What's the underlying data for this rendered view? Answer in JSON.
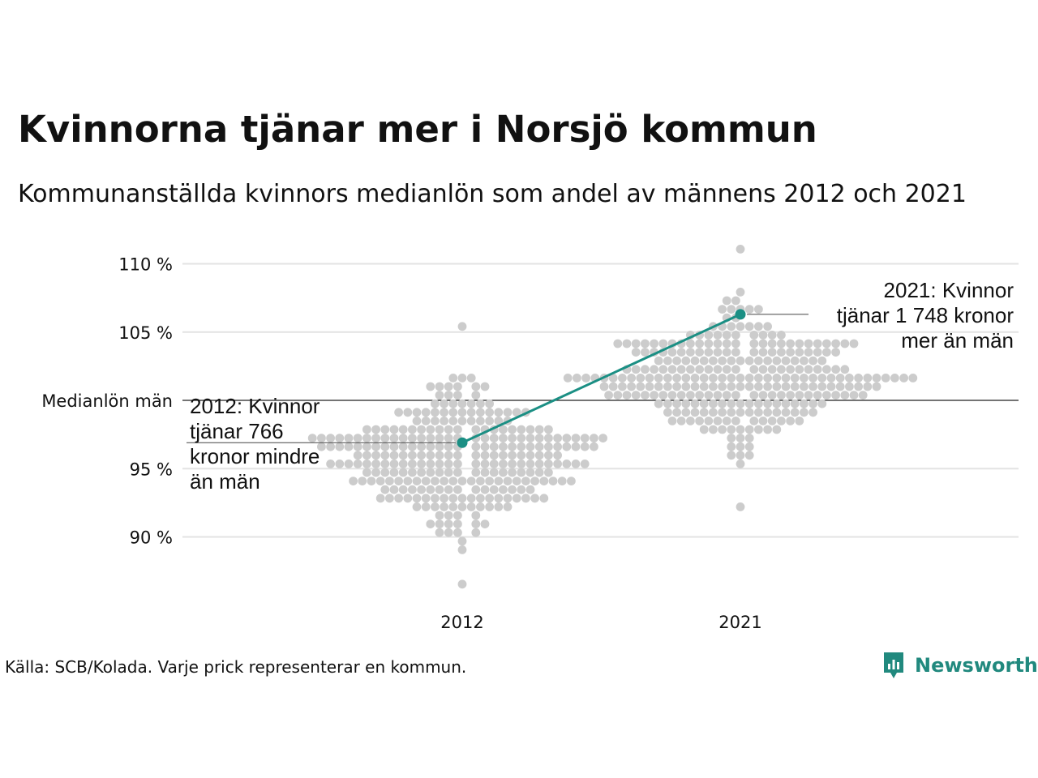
{
  "title": "Kvinnorna tjänar mer i Norsjö kommun",
  "subtitle": "Kommunanställda kvinnors medianlön som andel av männens 2012 och 2021",
  "source": "Källa: SCB/Kolada. Varje prick representerar en kommun.",
  "brand": {
    "name": "Newsworthy",
    "icon": "newsworthy-logo-icon",
    "color": "#21897e"
  },
  "chart_data": {
    "type": "scatter",
    "title": "Kvinnorna tjänar mer i Norsjö kommun",
    "subtitle": "Kommunanställda kvinnors medianlön som andel av männens 2012 och 2021",
    "categories": [
      "2012",
      "2021"
    ],
    "x": [
      "2012",
      "2021"
    ],
    "ylim": [
      86.5,
      111
    ],
    "yticks": [
      90,
      95,
      105,
      110
    ],
    "ytick_labels": [
      "90 %",
      "95 %",
      "105 %",
      "110 %"
    ],
    "reference_line": {
      "value": 100,
      "label": "Medianlön män"
    },
    "grid": true,
    "colors": {
      "dots": "#cccccc",
      "highlight": "#1b8f84",
      "grid": "#e3e3e3",
      "reference": "#222222"
    },
    "series": [
      {
        "name": "Norsjö",
        "x": [
          "2012",
          "2021"
        ],
        "values": [
          96.9,
          106.3
        ]
      }
    ],
    "distribution_summary": [
      {
        "x": "2012",
        "min": 86.5,
        "max": 105.1,
        "center": 96.0
      },
      {
        "x": "2021",
        "min": 92.5,
        "max": 111.3,
        "center": 101.5
      }
    ],
    "annotations": [
      {
        "x": "2012",
        "y": 96.9,
        "lines": [
          "2012: Kvinnor",
          "tjänar 766",
          "kronor mindre",
          "än män"
        ]
      },
      {
        "x": "2021",
        "y": 106.3,
        "lines": [
          "2021: Kvinnor",
          "tjänar 1 748 kronor",
          "mer än män"
        ]
      }
    ]
  }
}
